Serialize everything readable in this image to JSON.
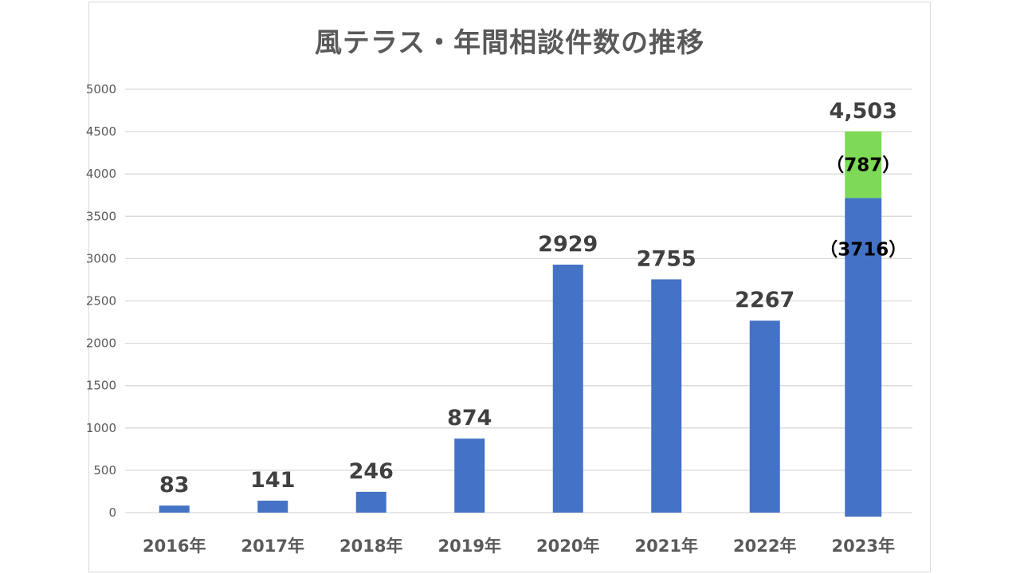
{
  "chart_data": {
    "type": "bar",
    "title": "風テラス・年間相談件数の推移",
    "xlabel": "",
    "ylabel": "",
    "ylim": [
      0,
      5000
    ],
    "yticks": [
      0,
      500,
      1000,
      1500,
      2000,
      2500,
      3000,
      3500,
      4000,
      4500,
      5000
    ],
    "grid": true,
    "legend": "none",
    "categories": [
      "2016年",
      "2017年",
      "2018年",
      "2019年",
      "2020年",
      "2021年",
      "2022年",
      "2023年"
    ],
    "values": [
      83,
      141,
      246,
      874,
      2929,
      2755,
      2267,
      4503
    ],
    "data_labels": [
      "83",
      "141",
      "246",
      "874",
      "2929",
      "2755",
      "2267",
      "4,503"
    ],
    "stacked_segments": {
      "category": "2023年",
      "segments": [
        {
          "value": 3716,
          "label": "（3716）",
          "color": "#4472c4"
        },
        {
          "value": 787,
          "label": "（787）",
          "color": "#7ed957"
        }
      ]
    },
    "colors": {
      "bar": "#4472c4",
      "grid": "#d9d9d9",
      "text": "#595959",
      "label": "#404040"
    }
  }
}
